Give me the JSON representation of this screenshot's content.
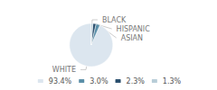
{
  "chart_data": {
    "type": "pie",
    "categories": [
      "WHITE",
      "ASIAN",
      "HISPANIC",
      "BLACK"
    ],
    "values": [
      93.4,
      3.0,
      2.3,
      1.3
    ],
    "value_labels": [
      "93.4%",
      "3.0%",
      "2.3%",
      "1.3%"
    ],
    "colors": [
      "#dce6ef",
      "#5b8fa8",
      "#2b4f6e",
      "#b8cdd8"
    ],
    "legend": "bottom"
  }
}
